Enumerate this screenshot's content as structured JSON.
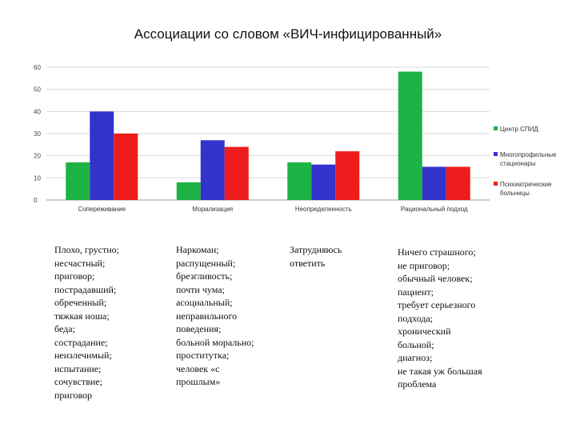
{
  "title": "Ассоциации со словом «ВИЧ-инфицированный»",
  "chart_data": {
    "type": "bar",
    "categories": [
      "Сопереживание",
      "Морализация",
      "Неопределенность",
      "Рациональный подход"
    ],
    "series": [
      {
        "name": "Центр СПИД",
        "color": "#1db344",
        "values": [
          17,
          8,
          17,
          58
        ]
      },
      {
        "name": "Многопрофильные стационары",
        "color": "#3333cc",
        "values": [
          40,
          27,
          16,
          15
        ]
      },
      {
        "name": "Психиатрические больницы",
        "color": "#ee1c1c",
        "values": [
          30,
          24,
          22,
          15
        ]
      }
    ],
    "yticks": [
      0,
      10,
      20,
      30,
      40,
      50,
      60
    ],
    "ylim": [
      0,
      60
    ],
    "grid": true,
    "legend_position": "right"
  },
  "legend": [
    {
      "lines": [
        "Центр СПИД"
      ]
    },
    {
      "lines": [
        "Многопрофильные",
        "стационары"
      ]
    },
    {
      "lines": [
        "Психиатрические",
        "больницы"
      ]
    }
  ],
  "associations": [
    {
      "lines": [
        "Плохо, грустно;",
        "несчастный;",
        "приговор;",
        "пострадавший;",
        "обреченный;",
        "тяжкая ноша;",
        "беда;",
        "сострадание;",
        "неизлечимый;",
        "испытание;",
        "сочувствие;",
        "приговор"
      ]
    },
    {
      "lines": [
        "Наркоман;",
        "распущенный;",
        "брезгливость;",
        "почти чума;",
        "асоциальный;",
        "неправильного",
        "поведения;",
        "больной морально;",
        "проститутка;",
        "человек «с",
        "прошлым»"
      ]
    },
    {
      "lines": [
        "Затрудняюсь",
        "ответить"
      ]
    },
    {
      "lines": [
        "Ничего страшного;",
        "не приговор;",
        "обычный человек;",
        "пациент;",
        "требует серьезного",
        "подхода;",
        "хронический",
        "больной;",
        "диагноз;",
        "не такая уж большая",
        "проблема"
      ]
    }
  ]
}
